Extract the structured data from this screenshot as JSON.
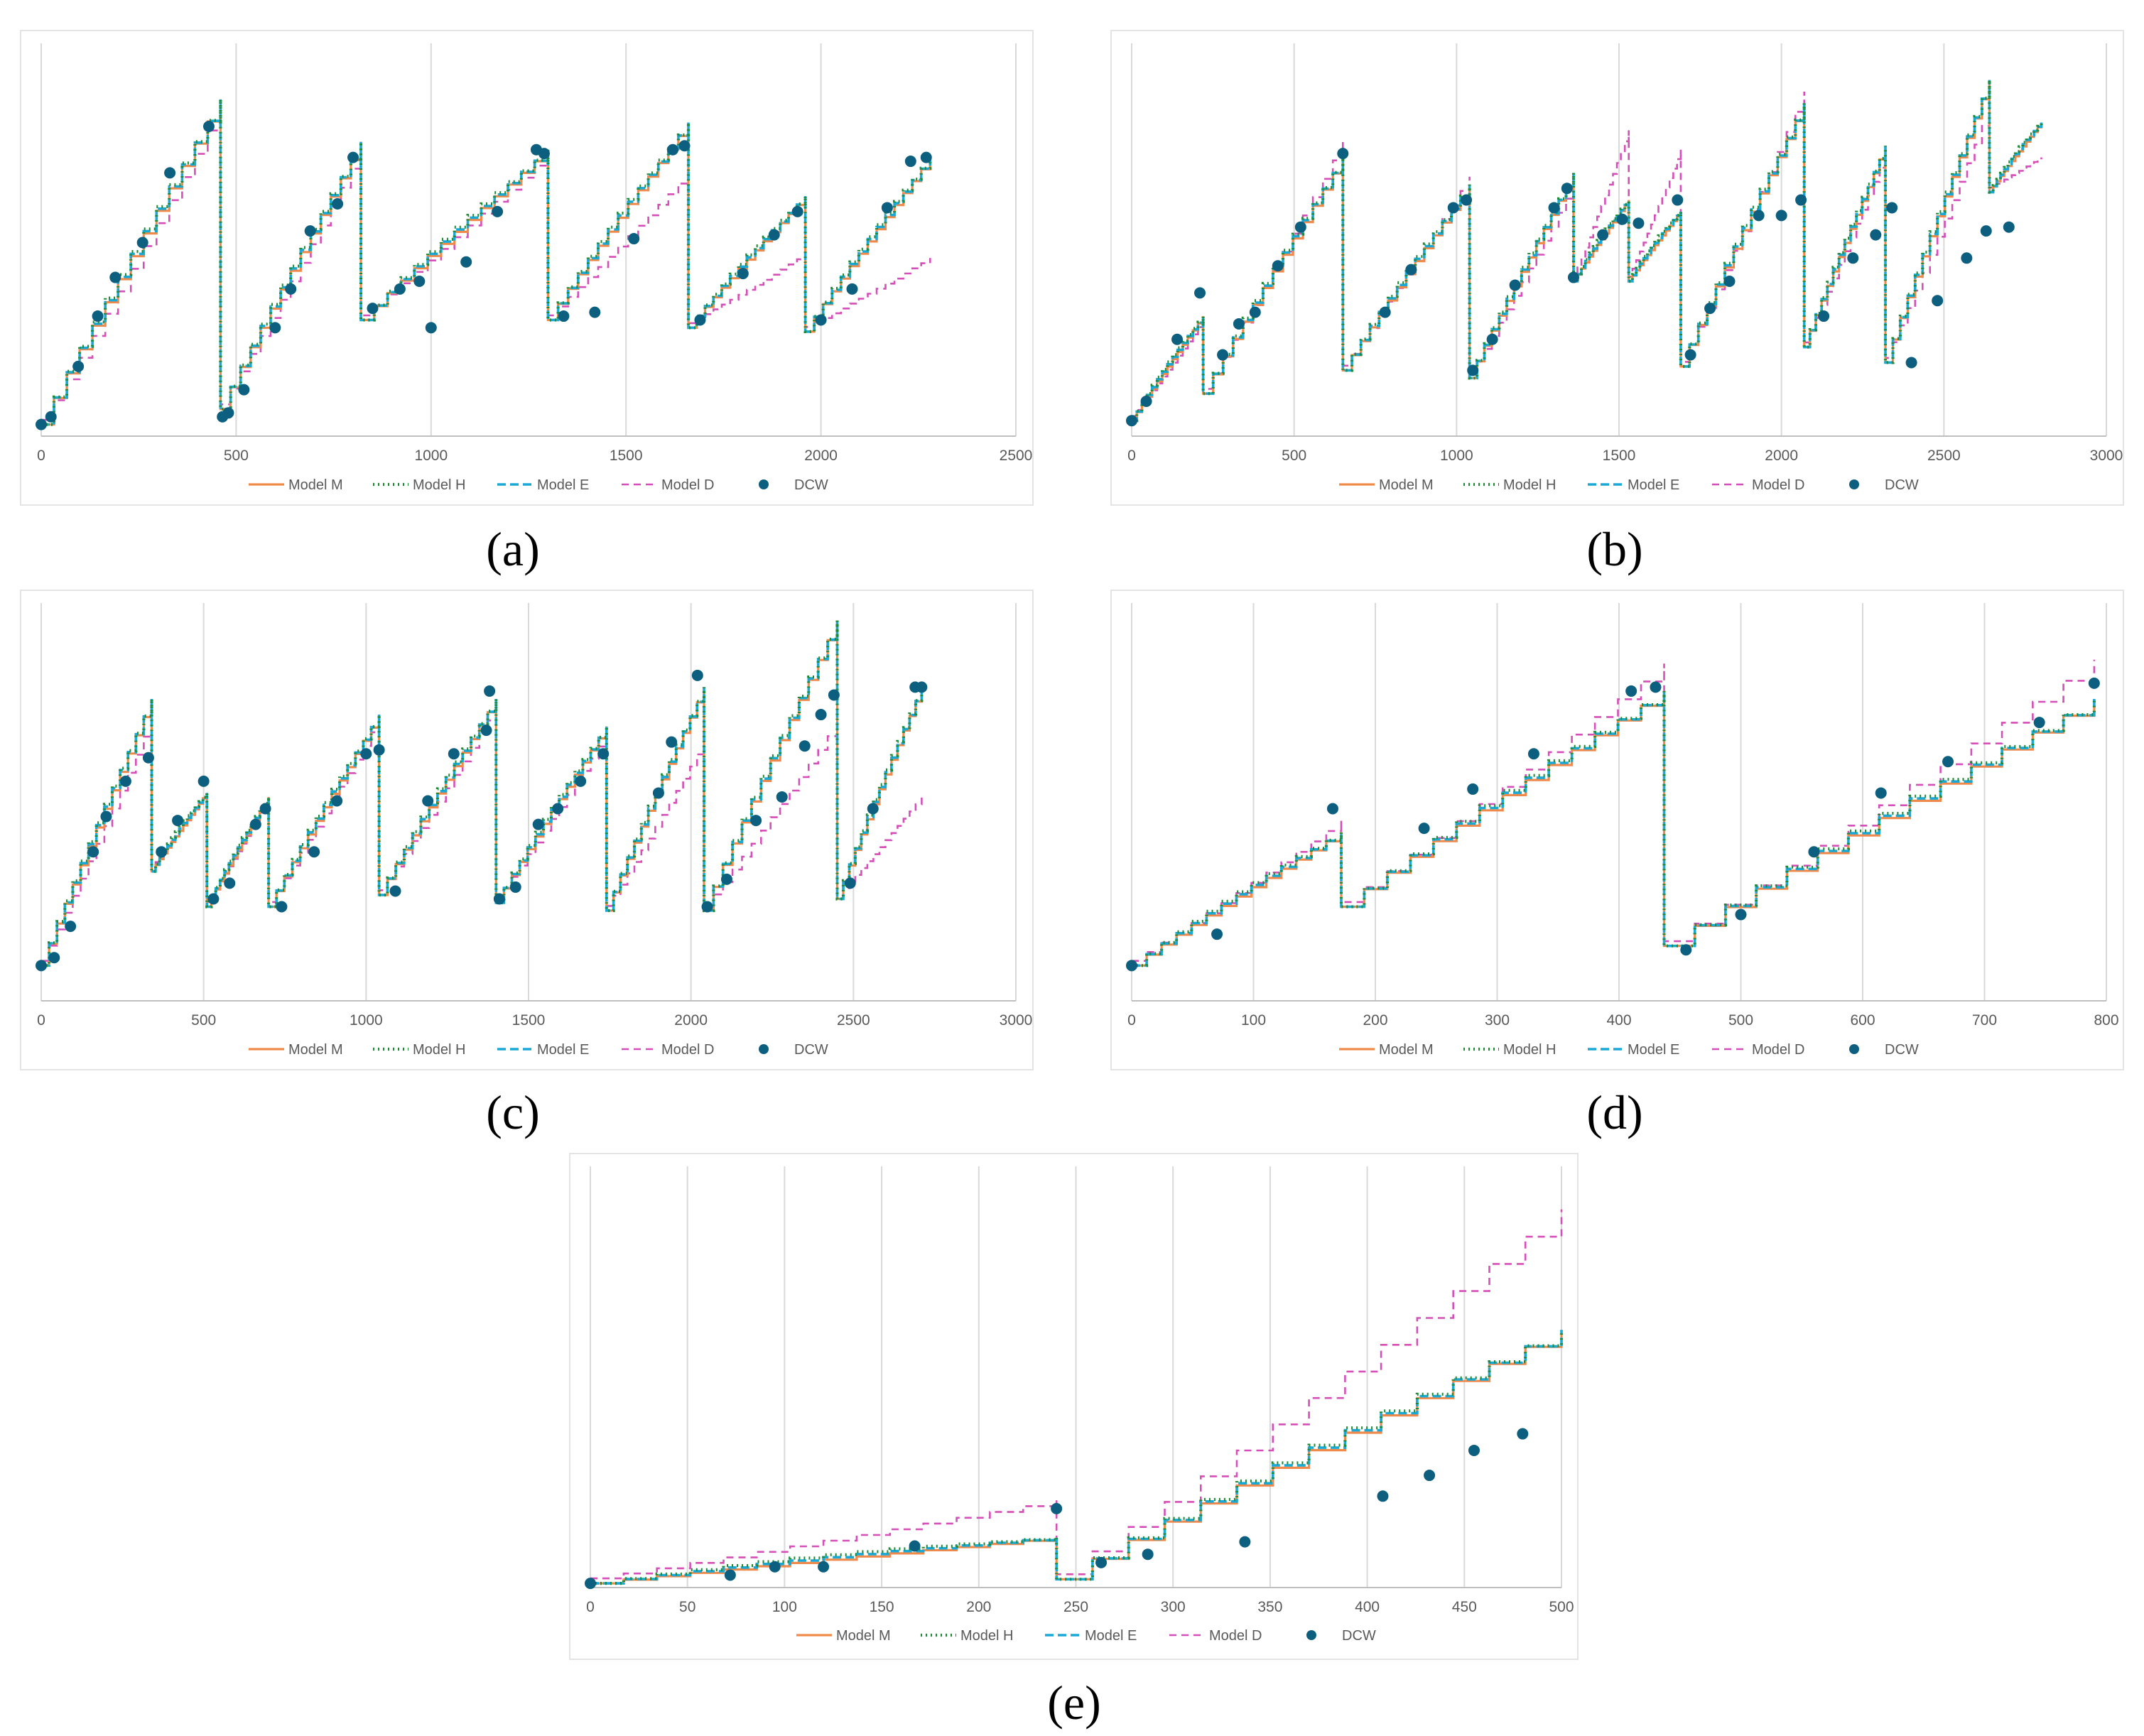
{
  "colors": {
    "model_m": "#f08a4b",
    "model_h": "#1f8a36",
    "model_e": "#1aa9d6",
    "model_d": "#d64fb8",
    "dcw": "#0c5f7e",
    "grid": "#d9d9d9",
    "axis": "#bfbfbf",
    "tick_text": "#595959"
  },
  "chart_data": [
    {
      "id": "a",
      "caption": "(a)",
      "type": "line",
      "xlim": [
        0,
        2500
      ],
      "xticks": [
        "0",
        "500",
        "1000",
        "1500",
        "2000",
        "2500"
      ],
      "ylim": [
        0,
        1
      ],
      "legend": [
        "Model M",
        "Model H",
        "Model E",
        "Model D",
        "DCW"
      ],
      "cycles": [
        {
          "x0": 0,
          "x1": 460,
          "y0": 0.03,
          "y1": 0.87,
          "dy1": 0.85
        },
        {
          "x0": 460,
          "x1": 820,
          "y0": 0.07,
          "y1": 0.76,
          "dy1": 0.74
        },
        {
          "x0": 820,
          "x1": 1300,
          "y0": 0.3,
          "y1": 0.74,
          "dy1": 0.73
        },
        {
          "x0": 1300,
          "x1": 1660,
          "y0": 0.3,
          "y1": 0.81,
          "dy1": 0.68
        },
        {
          "x0": 1660,
          "x1": 1960,
          "y0": 0.28,
          "y1": 0.62,
          "dy1": 0.47
        },
        {
          "x0": 1960,
          "x1": 2280,
          "y0": 0.27,
          "y1": 0.72,
          "dy1": 0.46
        }
      ],
      "dcw": [
        [
          0,
          0.03
        ],
        [
          25,
          0.05
        ],
        [
          95,
          0.18
        ],
        [
          145,
          0.31
        ],
        [
          190,
          0.41
        ],
        [
          260,
          0.5
        ],
        [
          330,
          0.68
        ],
        [
          430,
          0.8
        ],
        [
          465,
          0.05
        ],
        [
          480,
          0.06
        ],
        [
          520,
          0.12
        ],
        [
          600,
          0.28
        ],
        [
          640,
          0.38
        ],
        [
          690,
          0.53
        ],
        [
          760,
          0.6
        ],
        [
          800,
          0.72
        ],
        [
          850,
          0.33
        ],
        [
          920,
          0.38
        ],
        [
          970,
          0.4
        ],
        [
          1000,
          0.28
        ],
        [
          1090,
          0.45
        ],
        [
          1170,
          0.58
        ],
        [
          1270,
          0.74
        ],
        [
          1290,
          0.73
        ],
        [
          1340,
          0.31
        ],
        [
          1420,
          0.32
        ],
        [
          1520,
          0.51
        ],
        [
          1620,
          0.74
        ],
        [
          1650,
          0.75
        ],
        [
          1690,
          0.3
        ],
        [
          1800,
          0.42
        ],
        [
          1880,
          0.52
        ],
        [
          1940,
          0.58
        ],
        [
          2000,
          0.3
        ],
        [
          2080,
          0.38
        ],
        [
          2170,
          0.59
        ],
        [
          2230,
          0.71
        ],
        [
          2270,
          0.72
        ]
      ]
    },
    {
      "id": "b",
      "caption": "(b)",
      "type": "line",
      "xlim": [
        0,
        3000
      ],
      "xticks": [
        "0",
        "500",
        "1000",
        "1500",
        "2000",
        "2500",
        "3000"
      ],
      "ylim": [
        0,
        1
      ],
      "legend": [
        "Model M",
        "Model H",
        "Model E",
        "Model D",
        "DCW"
      ],
      "cycles": [
        {
          "x0": 0,
          "x1": 220,
          "y0": 0.04,
          "y1": 0.31,
          "dy1": 0.3
        },
        {
          "x0": 220,
          "x1": 650,
          "y0": 0.11,
          "y1": 0.72,
          "dy1": 0.76
        },
        {
          "x0": 650,
          "x1": 1040,
          "y0": 0.17,
          "y1": 0.65,
          "dy1": 0.67
        },
        {
          "x0": 1040,
          "x1": 1360,
          "y0": 0.15,
          "y1": 0.68,
          "dy1": 0.65
        },
        {
          "x0": 1360,
          "x1": 1530,
          "y0": 0.4,
          "y1": 0.61,
          "dy1": 0.79
        },
        {
          "x0": 1530,
          "x1": 1690,
          "y0": 0.4,
          "y1": 0.58,
          "dy1": 0.74
        },
        {
          "x0": 1690,
          "x1": 2070,
          "y0": 0.18,
          "y1": 0.86,
          "dy1": 0.89
        },
        {
          "x0": 2070,
          "x1": 2320,
          "y0": 0.23,
          "y1": 0.75,
          "dy1": 0.73
        },
        {
          "x0": 2320,
          "x1": 2640,
          "y0": 0.19,
          "y1": 0.92,
          "dy1": 0.85
        },
        {
          "x0": 2640,
          "x1": 2800,
          "y0": 0.63,
          "y1": 0.81,
          "dy1": 0.72
        }
      ],
      "dcw": [
        [
          0,
          0.04
        ],
        [
          45,
          0.09
        ],
        [
          140,
          0.25
        ],
        [
          210,
          0.37
        ],
        [
          280,
          0.21
        ],
        [
          330,
          0.29
        ],
        [
          380,
          0.32
        ],
        [
          450,
          0.44
        ],
        [
          520,
          0.54
        ],
        [
          650,
          0.73
        ],
        [
          780,
          0.32
        ],
        [
          860,
          0.43
        ],
        [
          990,
          0.59
        ],
        [
          1030,
          0.61
        ],
        [
          1050,
          0.17
        ],
        [
          1110,
          0.25
        ],
        [
          1180,
          0.39
        ],
        [
          1300,
          0.59
        ],
        [
          1340,
          0.64
        ],
        [
          1360,
          0.41
        ],
        [
          1450,
          0.52
        ],
        [
          1510,
          0.56
        ],
        [
          1560,
          0.55
        ],
        [
          1680,
          0.61
        ],
        [
          1720,
          0.21
        ],
        [
          1780,
          0.33
        ],
        [
          1840,
          0.4
        ],
        [
          1930,
          0.57
        ],
        [
          2000,
          0.57
        ],
        [
          2060,
          0.61
        ],
        [
          2130,
          0.31
        ],
        [
          2220,
          0.46
        ],
        [
          2290,
          0.52
        ],
        [
          2340,
          0.59
        ],
        [
          2400,
          0.19
        ],
        [
          2480,
          0.35
        ],
        [
          2570,
          0.46
        ],
        [
          2630,
          0.53
        ],
        [
          2700,
          0.54
        ]
      ]
    },
    {
      "id": "c",
      "caption": "(c)",
      "type": "line",
      "xlim": [
        0,
        3000
      ],
      "xticks": [
        "0",
        "500",
        "1000",
        "1500",
        "2000",
        "2500",
        "3000"
      ],
      "ylim": [
        0,
        1
      ],
      "legend": [
        "Model M",
        "Model H",
        "Model E",
        "Model D",
        "DCW"
      ],
      "cycles": [
        {
          "x0": 0,
          "x1": 340,
          "y0": 0.09,
          "y1": 0.77,
          "dy1": 0.72
        },
        {
          "x0": 340,
          "x1": 510,
          "y0": 0.33,
          "y1": 0.53,
          "dy1": 0.53
        },
        {
          "x0": 510,
          "x1": 700,
          "y0": 0.24,
          "y1": 0.52,
          "dy1": 0.52
        },
        {
          "x0": 700,
          "x1": 1040,
          "y0": 0.24,
          "y1": 0.73,
          "dy1": 0.72
        },
        {
          "x0": 1040,
          "x1": 1400,
          "y0": 0.27,
          "y1": 0.77,
          "dy1": 0.75
        },
        {
          "x0": 1400,
          "x1": 1740,
          "y0": 0.25,
          "y1": 0.7,
          "dy1": 0.68
        },
        {
          "x0": 1740,
          "x1": 2040,
          "y0": 0.23,
          "y1": 0.8,
          "dy1": 0.66
        },
        {
          "x0": 2040,
          "x1": 2450,
          "y0": 0.23,
          "y1": 0.97,
          "dy1": 0.71
        },
        {
          "x0": 2450,
          "x1": 2710,
          "y0": 0.26,
          "y1": 0.8,
          "dy1": 0.52
        }
      ],
      "dcw": [
        [
          0,
          0.09
        ],
        [
          40,
          0.11
        ],
        [
          90,
          0.19
        ],
        [
          160,
          0.38
        ],
        [
          200,
          0.47
        ],
        [
          260,
          0.56
        ],
        [
          330,
          0.62
        ],
        [
          370,
          0.38
        ],
        [
          420,
          0.46
        ],
        [
          500,
          0.56
        ],
        [
          530,
          0.26
        ],
        [
          580,
          0.3
        ],
        [
          660,
          0.45
        ],
        [
          690,
          0.49
        ],
        [
          740,
          0.24
        ],
        [
          840,
          0.38
        ],
        [
          910,
          0.51
        ],
        [
          1000,
          0.63
        ],
        [
          1040,
          0.64
        ],
        [
          1090,
          0.28
        ],
        [
          1190,
          0.51
        ],
        [
          1270,
          0.63
        ],
        [
          1370,
          0.69
        ],
        [
          1380,
          0.79
        ],
        [
          1410,
          0.26
        ],
        [
          1460,
          0.29
        ],
        [
          1530,
          0.45
        ],
        [
          1590,
          0.49
        ],
        [
          1660,
          0.56
        ],
        [
          1730,
          0.63
        ],
        [
          1900,
          0.53
        ],
        [
          1940,
          0.66
        ],
        [
          2020,
          0.83
        ],
        [
          2050,
          0.24
        ],
        [
          2110,
          0.31
        ],
        [
          2200,
          0.46
        ],
        [
          2280,
          0.52
        ],
        [
          2350,
          0.65
        ],
        [
          2400,
          0.73
        ],
        [
          2440,
          0.78
        ],
        [
          2490,
          0.3
        ],
        [
          2560,
          0.49
        ],
        [
          2690,
          0.8
        ],
        [
          2710,
          0.8
        ]
      ]
    },
    {
      "id": "d",
      "caption": "(d)",
      "type": "line",
      "xlim": [
        0,
        800
      ],
      "xticks": [
        "0",
        "100",
        "200",
        "300",
        "400",
        "500",
        "600",
        "700",
        "800"
      ],
      "ylim": [
        0,
        1
      ],
      "legend": [
        "Model M",
        "Model H",
        "Model E",
        "Model D",
        "DCW"
      ],
      "cycles": [
        {
          "x0": 0,
          "x1": 172,
          "y0": 0.09,
          "y1": 0.43,
          "dy1": 0.46
        },
        {
          "x0": 172,
          "x1": 437,
          "y0": 0.24,
          "y1": 0.79,
          "dy1": 0.86
        },
        {
          "x0": 437,
          "x1": 790,
          "y0": 0.14,
          "y1": 0.77,
          "dy1": 0.87
        }
      ],
      "dcw": [
        [
          0,
          0.09
        ],
        [
          70,
          0.17
        ],
        [
          165,
          0.49
        ],
        [
          240,
          0.44
        ],
        [
          280,
          0.54
        ],
        [
          330,
          0.63
        ],
        [
          410,
          0.79
        ],
        [
          430,
          0.8
        ],
        [
          455,
          0.13
        ],
        [
          500,
          0.22
        ],
        [
          560,
          0.38
        ],
        [
          615,
          0.53
        ],
        [
          670,
          0.61
        ],
        [
          745,
          0.71
        ],
        [
          790,
          0.81
        ]
      ]
    },
    {
      "id": "e",
      "caption": "(e)",
      "type": "line",
      "xlim": [
        0,
        500
      ],
      "xticks": [
        "0",
        "50",
        "100",
        "150",
        "200",
        "250",
        "300",
        "350",
        "400",
        "450",
        "500"
      ],
      "ylim": [
        0,
        1
      ],
      "legend": [
        "Model M",
        "Model H",
        "Model E",
        "Model D",
        "DCW"
      ],
      "cycles": [
        {
          "x0": 0,
          "x1": 240,
          "y0": 0.01,
          "y1": 0.12,
          "dy1": 0.21
        },
        {
          "x0": 240,
          "x1": 500,
          "y0": 0.02,
          "y1": 0.62,
          "dy1": 0.91
        }
      ],
      "dcw": [
        [
          0,
          0.01
        ],
        [
          72,
          0.03
        ],
        [
          95,
          0.05
        ],
        [
          120,
          0.05
        ],
        [
          167,
          0.1
        ],
        [
          240,
          0.19
        ],
        [
          263,
          0.06
        ],
        [
          287,
          0.08
        ],
        [
          337,
          0.11
        ],
        [
          408,
          0.22
        ],
        [
          432,
          0.27
        ],
        [
          455,
          0.33
        ],
        [
          480,
          0.37
        ]
      ]
    }
  ]
}
